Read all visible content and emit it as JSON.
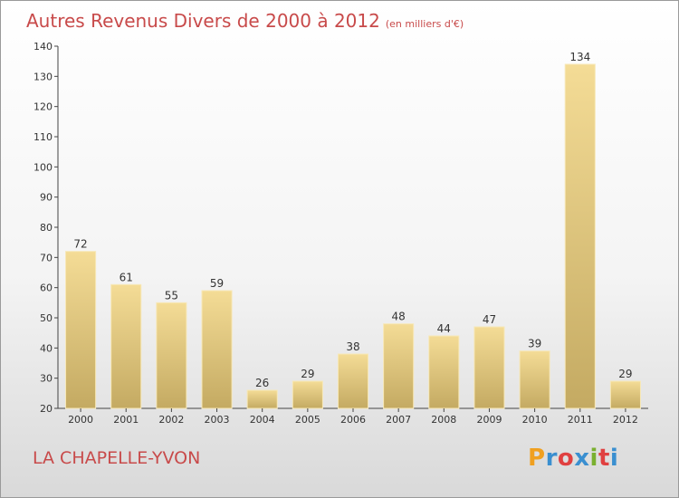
{
  "header": {
    "title": "Autres Revenus Divers de 2000 à 2012",
    "unit": "(en milliers d'€)"
  },
  "footer": {
    "town": "LA CHAPELLE-YVON",
    "logo": [
      "P",
      "r",
      "o",
      "x",
      "i",
      "t",
      "i"
    ],
    "logo_colors": [
      "#f0a020",
      "#3a8fd0",
      "#e04040",
      "#3a8fd0",
      "#7ab030",
      "#e04040",
      "#3a8fd0"
    ]
  },
  "colors": {
    "bar_light": "#f4dc96",
    "bar_dark": "#c4aa62",
    "title": "#c84a4a"
  },
  "chart_data": {
    "type": "bar",
    "title": "Autres Revenus Divers de 2000 à 2012",
    "subtitle": "(en milliers d'€)",
    "categories": [
      "2000",
      "2001",
      "2002",
      "2003",
      "2004",
      "2005",
      "2006",
      "2007",
      "2008",
      "2009",
      "2010",
      "2011",
      "2012"
    ],
    "values": [
      72,
      61,
      55,
      59,
      26,
      29,
      38,
      48,
      44,
      47,
      39,
      134,
      29
    ],
    "ylim": [
      20,
      140
    ],
    "yticks": [
      20,
      30,
      40,
      50,
      60,
      70,
      80,
      90,
      100,
      110,
      120,
      130,
      140
    ],
    "xlabel": "",
    "ylabel": "",
    "grid": false,
    "legend": "none"
  }
}
